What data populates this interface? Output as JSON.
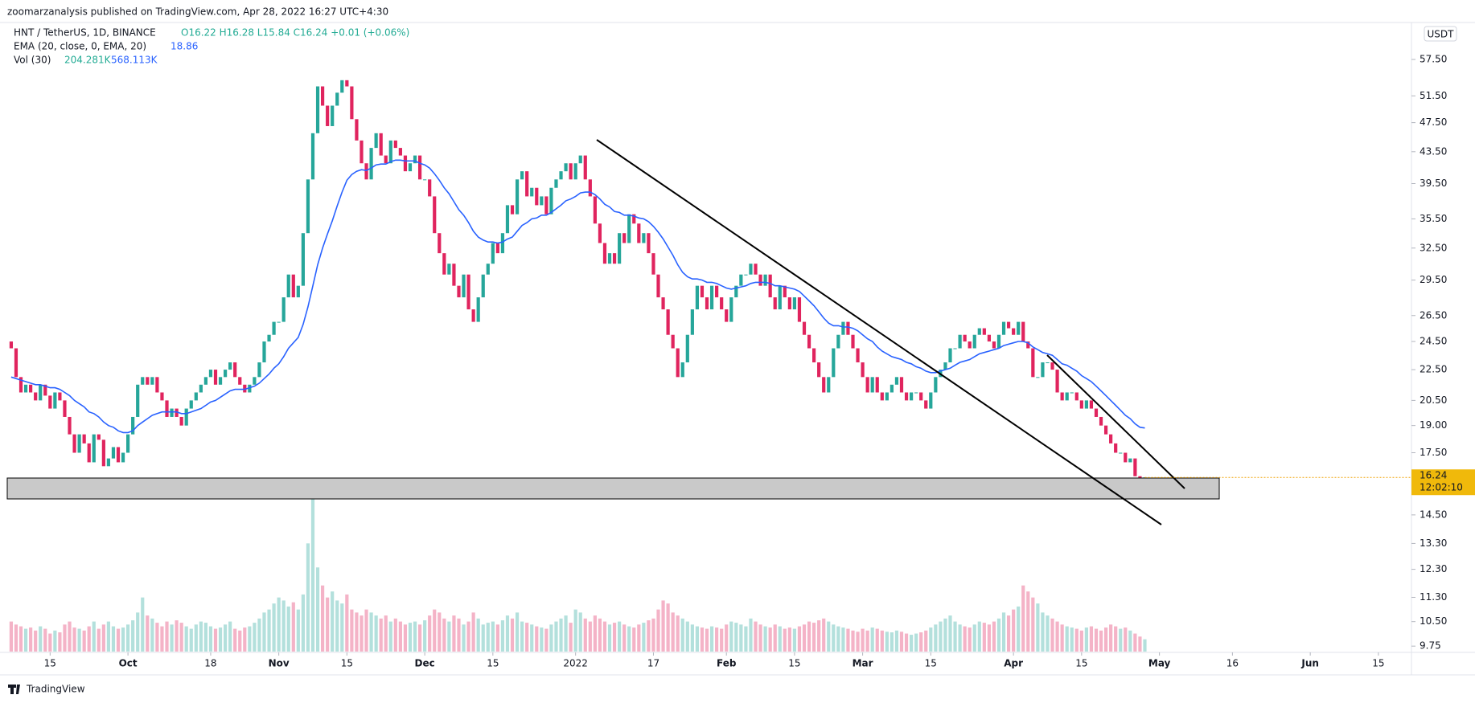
{
  "header": {
    "published": "zoomarzanalysis published on TradingView.com, Apr 28, 2022 16:27 UTC+4:30"
  },
  "legend": {
    "symbol": "HNT / TetherUS, 1D, BINANCE",
    "ohlc": "O16.22 H16.28 L15.84 C16.24 +0.01 (+0.06%)",
    "ema_label": "EMA (20, close, 0, EMA, 20)",
    "ema_value": "18.86",
    "vol_label": "Vol (30)",
    "vol_value": "204.281K",
    "vol_ma": "568.113K"
  },
  "footer": {
    "brand": "TradingView"
  },
  "chart_data": {
    "type": "candlestick",
    "log_scale": true,
    "currency": "USDT",
    "countdown": "12:02:10",
    "up_color": "#26a69a",
    "down_color": "#e0245e",
    "ema_color": "#2962ff",
    "first_open": 24.5,
    "closes": [
      24,
      22,
      21,
      21.5,
      21,
      20.5,
      21.5,
      20.8,
      20,
      21,
      20.5,
      19.5,
      18.5,
      17.5,
      18.5,
      18,
      17,
      18.5,
      18.2,
      16.8,
      17.2,
      17.8,
      17,
      17.5,
      18.5,
      19.5,
      21.5,
      22,
      21.5,
      22,
      21,
      20.5,
      19.5,
      20,
      19.5,
      19,
      20,
      20.5,
      21,
      21.5,
      22,
      22.5,
      21.5,
      22,
      22.5,
      23,
      22,
      21.5,
      21,
      21.5,
      22,
      23,
      24.5,
      25,
      26,
      26,
      28,
      30,
      28,
      29,
      34,
      40,
      46,
      53,
      50,
      47,
      50,
      52,
      54,
      53,
      48,
      45,
      42,
      40,
      44,
      46,
      43,
      42,
      45,
      44,
      43,
      41,
      42,
      43,
      40,
      40,
      38,
      34,
      32,
      30,
      31,
      29,
      28,
      30,
      27,
      26,
      28,
      30,
      31,
      33,
      32,
      34,
      37,
      36,
      40,
      41,
      38,
      39,
      37,
      38,
      36,
      39,
      40,
      41,
      42,
      40,
      42,
      43,
      40,
      38,
      35,
      33,
      31,
      32,
      31,
      34,
      33,
      36,
      35,
      33,
      34,
      32,
      30,
      28,
      27,
      25,
      24,
      22,
      23,
      25,
      27,
      29,
      28,
      27,
      29,
      28,
      27,
      26,
      28,
      29,
      30,
      30,
      31,
      30,
      29,
      30,
      28,
      27,
      29,
      28,
      27,
      28,
      26,
      25,
      24,
      23,
      22,
      21,
      22,
      24,
      25,
      26,
      25,
      24,
      23,
      22,
      21,
      22,
      21,
      20.5,
      21,
      21.5,
      22,
      21,
      20.5,
      21,
      21,
      20.5,
      20,
      21,
      22,
      22.5,
      23,
      24,
      24,
      25,
      24.5,
      24,
      25,
      25.5,
      25,
      24.5,
      24,
      25,
      26,
      25.5,
      25,
      26,
      24.5,
      24,
      22,
      22,
      23,
      23,
      22.5,
      21,
      20.5,
      21,
      21,
      20.5,
      20,
      20.5,
      20,
      19.5,
      19,
      18.5,
      18,
      17.5,
      17.5,
      17,
      17.2,
      16.3,
      16.2,
      16.24
    ],
    "ema": [
      22,
      21.9,
      21.8,
      21.7,
      21.6,
      21.5,
      21.5,
      21.4,
      21.3,
      21.3,
      21.2,
      21,
      20.8,
      20.5,
      20.3,
      20.1,
      19.8,
      19.7,
      19.5,
      19.2,
      19,
      18.9,
      18.7,
      18.6,
      18.6,
      18.7,
      19,
      19.2,
      19.4,
      19.6,
      19.7,
      19.8,
      19.8,
      19.8,
      19.8,
      19.7,
      19.7,
      19.8,
      19.9,
      20,
      20.2,
      20.4,
      20.5,
      20.7,
      20.9,
      21.1,
      21.2,
      21.2,
      21.2,
      21.3,
      21.4,
      21.6,
      21.9,
      22.2,
      22.6,
      22.9,
      23.4,
      24,
      24.4,
      24.8,
      25.8,
      27.2,
      29,
      30.9,
      32.5,
      33.9,
      35.3,
      36.9,
      38.5,
      39.9,
      40.6,
      41,
      41.2,
      41.1,
      41.4,
      41.8,
      41.9,
      41.9,
      42.2,
      42.4,
      42.4,
      42.3,
      42.3,
      42.3,
      42,
      41.8,
      41.4,
      40.7,
      39.9,
      39,
      38.3,
      37.4,
      36.5,
      35.9,
      35.1,
      34.2,
      33.6,
      33.3,
      33.1,
      33.1,
      33,
      33.1,
      33.4,
      33.6,
      34.2,
      34.8,
      35.1,
      35.5,
      35.6,
      35.9,
      35.9,
      36.2,
      36.6,
      37,
      37.5,
      37.7,
      38,
      38.4,
      38.5,
      38.5,
      38.2,
      37.7,
      37.1,
      36.8,
      36.3,
      36.2,
      35.9,
      35.9,
      35.8,
      35.6,
      35.5,
      35.2,
      34.7,
      34.1,
      33.4,
      32.6,
      31.8,
      30.9,
      30.2,
      29.8,
      29.6,
      29.6,
      29.5,
      29.3,
      29.3,
      29.2,
      29,
      28.8,
      28.7,
      28.8,
      28.9,
      29,
      29.2,
      29.3,
      29.3,
      29.3,
      29.2,
      29,
      29,
      28.9,
      28.8,
      28.7,
      28.5,
      28.1,
      27.7,
      27.3,
      26.8,
      26.3,
      25.9,
      25.7,
      25.7,
      25.6,
      25.6,
      25.5,
      25.3,
      25,
      24.7,
      24.5,
      24.1,
      23.8,
      23.6,
      23.4,
      23.3,
      23.2,
      23,
      22.9,
      22.7,
      22.6,
      22.4,
      22.3,
      22.3,
      22.4,
      22.5,
      22.6,
      22.8,
      23,
      23.1,
      23.2,
      23.4,
      23.6,
      23.7,
      23.8,
      23.9,
      24,
      24.2,
      24.3,
      24.4,
      24.5,
      24.5,
      24.4,
      24.1,
      23.9,
      23.7,
      23.6,
      23.5,
      23.2,
      22.9,
      22.8,
      22.6,
      22.4,
      22.1,
      21.9,
      21.7,
      21.4,
      21.1,
      20.8,
      20.5,
      20.2,
      19.9,
      19.6,
      19.4,
      19.1,
      18.9,
      18.86
    ],
    "volumes": [
      500,
      450,
      420,
      380,
      400,
      350,
      420,
      380,
      300,
      350,
      320,
      450,
      500,
      400,
      380,
      350,
      420,
      500,
      380,
      450,
      500,
      420,
      380,
      400,
      450,
      520,
      650,
      900,
      600,
      550,
      480,
      420,
      500,
      450,
      520,
      480,
      420,
      380,
      450,
      500,
      480,
      420,
      380,
      400,
      450,
      500,
      380,
      350,
      400,
      420,
      480,
      550,
      650,
      700,
      800,
      900,
      850,
      750,
      820,
      700,
      950,
      1800,
      2600,
      1400,
      1100,
      900,
      1000,
      850,
      800,
      950,
      700,
      650,
      600,
      700,
      650,
      600,
      550,
      600,
      500,
      550,
      500,
      450,
      480,
      500,
      450,
      520,
      600,
      700,
      650,
      550,
      500,
      600,
      550,
      450,
      500,
      650,
      550,
      450,
      480,
      500,
      450,
      520,
      600,
      550,
      650,
      500,
      480,
      450,
      420,
      400,
      380,
      450,
      500,
      550,
      600,
      480,
      700,
      650,
      550,
      500,
      600,
      550,
      500,
      450,
      480,
      500,
      450,
      420,
      400,
      450,
      480,
      520,
      550,
      700,
      850,
      800,
      650,
      600,
      550,
      500,
      450,
      420,
      400,
      380,
      420,
      400,
      380,
      450,
      500,
      480,
      450,
      420,
      550,
      500,
      450,
      420,
      400,
      450,
      420,
      380,
      400,
      380,
      420,
      450,
      500,
      480,
      520,
      550,
      500,
      450,
      420,
      400,
      380,
      350,
      330,
      380,
      350,
      400,
      380,
      350,
      330,
      320,
      350,
      330,
      300,
      280,
      300,
      320,
      350,
      400,
      450,
      500,
      550,
      600,
      500,
      450,
      420,
      400,
      450,
      500,
      480,
      450,
      500,
      550,
      650,
      600,
      700,
      750,
      1100,
      1000,
      900,
      800,
      650,
      600,
      550,
      500,
      450,
      420,
      400,
      380,
      350,
      400,
      420,
      380,
      350,
      400,
      450,
      420,
      380,
      400,
      350,
      300,
      250,
      204.281
    ],
    "vol_ylim": [
      0,
      2700
    ],
    "xlim": [
      -2.3,
      287.8
    ],
    "xticks": [
      {
        "value": 8,
        "label": "15"
      },
      {
        "value": 24,
        "label": "Oct"
      },
      {
        "value": 41,
        "label": "18"
      },
      {
        "value": 55,
        "label": "Nov"
      },
      {
        "value": 69,
        "label": "15"
      },
      {
        "value": 85,
        "label": "Dec"
      },
      {
        "value": 99,
        "label": "15"
      },
      {
        "value": 116,
        "label": "2022"
      },
      {
        "value": 132,
        "label": "17"
      },
      {
        "value": 147,
        "label": "Feb"
      },
      {
        "value": 161,
        "label": "15"
      },
      {
        "value": 175,
        "label": "Mar"
      },
      {
        "value": 189,
        "label": "15"
      },
      {
        "value": 206,
        "label": "Apr"
      },
      {
        "value": 220,
        "label": "15"
      },
      {
        "value": 236,
        "label": "May"
      },
      {
        "value": 251,
        "label": "16"
      },
      {
        "value": 267,
        "label": "Jun"
      },
      {
        "value": 281,
        "label": "15"
      }
    ],
    "ylim": [
      9.59,
      62.3
    ],
    "yticks": [
      {
        "value": 57.5,
        "label": "57.50"
      },
      {
        "value": 51.5,
        "label": "51.50"
      },
      {
        "value": 47.5,
        "label": "47.50"
      },
      {
        "value": 43.5,
        "label": "43.50"
      },
      {
        "value": 39.5,
        "label": "39.50"
      },
      {
        "value": 35.5,
        "label": "35.50"
      },
      {
        "value": 32.5,
        "label": "32.50"
      },
      {
        "value": 29.5,
        "label": "29.50"
      },
      {
        "value": 26.5,
        "label": "26.50"
      },
      {
        "value": 24.5,
        "label": "24.50"
      },
      {
        "value": 22.5,
        "label": "22.50"
      },
      {
        "value": 20.5,
        "label": "20.50"
      },
      {
        "value": 19,
        "label": "19.00"
      },
      {
        "value": 17.5,
        "label": "17.50"
      },
      {
        "value": 14.5,
        "label": "14.50"
      },
      {
        "value": 13.3,
        "label": "13.30"
      },
      {
        "value": 12.3,
        "label": "12.30"
      },
      {
        "value": 11.3,
        "label": "11.30"
      },
      {
        "value": 10.5,
        "label": "10.50"
      },
      {
        "value": 9.75,
        "label": "9.75"
      }
    ]
  }
}
